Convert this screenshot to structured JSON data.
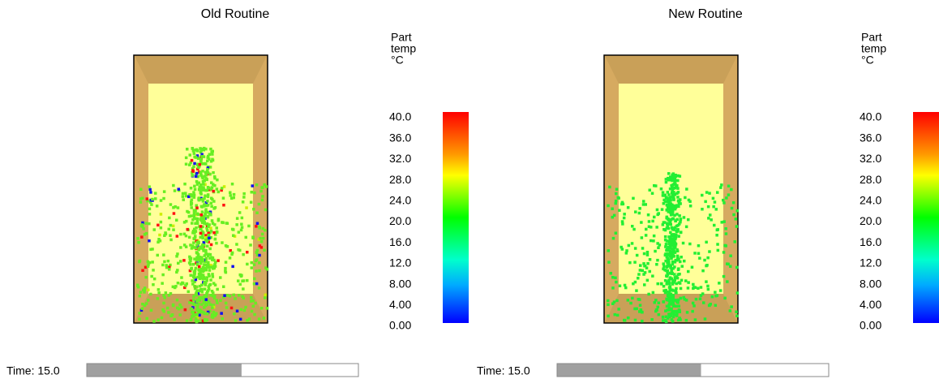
{
  "panels": [
    {
      "title": "Old Routine",
      "legend_label": [
        "Part",
        "temp",
        "°C"
      ],
      "legend_ticks": [
        "40.0",
        "36.0",
        "32.0",
        "28.0",
        "24.0",
        "20.0",
        "16.0",
        "12.0",
        "8.00",
        "4.00",
        "0.00"
      ],
      "time_label": "Time: 15.0",
      "progress": 0.57
    },
    {
      "title": "New Routine",
      "legend_label": [
        "Part",
        "temp",
        "°C"
      ],
      "legend_ticks": [
        "40.0",
        "36.0",
        "32.0",
        "28.0",
        "24.0",
        "20.0",
        "16.0",
        "12.0",
        "8.00",
        "4.00",
        "0.00"
      ],
      "time_label": "Time: 15.0",
      "progress": 0.53
    }
  ]
}
